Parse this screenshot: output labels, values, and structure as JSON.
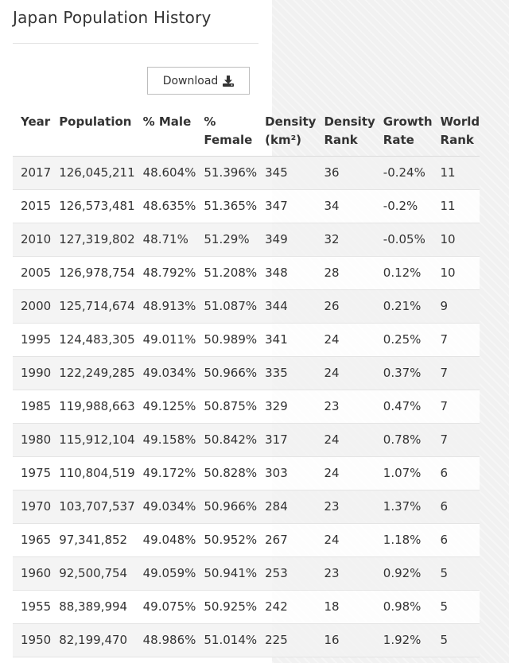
{
  "title": "Japan Population History",
  "download": {
    "label": "Download",
    "icon": "download-icon"
  },
  "columns": [
    {
      "line1": "Year",
      "line2": ""
    },
    {
      "line1": "Population",
      "line2": ""
    },
    {
      "line1": "% Male",
      "line2": ""
    },
    {
      "line1": "%",
      "line2": "Female"
    },
    {
      "line1": "Density",
      "line2": "(km²)"
    },
    {
      "line1": "Density",
      "line2": "Rank"
    },
    {
      "line1": "Growth",
      "line2": "Rate"
    },
    {
      "line1": "World",
      "line2": "Rank"
    }
  ],
  "rows": [
    [
      "2017",
      "126,045,211",
      "48.604%",
      "51.396%",
      "345",
      "36",
      "-0.24%",
      "11"
    ],
    [
      "2015",
      "126,573,481",
      "48.635%",
      "51.365%",
      "347",
      "34",
      "-0.2%",
      "11"
    ],
    [
      "2010",
      "127,319,802",
      "48.71%",
      "51.29%",
      "349",
      "32",
      "-0.05%",
      "10"
    ],
    [
      "2005",
      "126,978,754",
      "48.792%",
      "51.208%",
      "348",
      "28",
      "0.12%",
      "10"
    ],
    [
      "2000",
      "125,714,674",
      "48.913%",
      "51.087%",
      "344",
      "26",
      "0.21%",
      "9"
    ],
    [
      "1995",
      "124,483,305",
      "49.011%",
      "50.989%",
      "341",
      "24",
      "0.25%",
      "7"
    ],
    [
      "1990",
      "122,249,285",
      "49.034%",
      "50.966%",
      "335",
      "24",
      "0.37%",
      "7"
    ],
    [
      "1985",
      "119,988,663",
      "49.125%",
      "50.875%",
      "329",
      "23",
      "0.47%",
      "7"
    ],
    [
      "1980",
      "115,912,104",
      "49.158%",
      "50.842%",
      "317",
      "24",
      "0.78%",
      "7"
    ],
    [
      "1975",
      "110,804,519",
      "49.172%",
      "50.828%",
      "303",
      "24",
      "1.07%",
      "6"
    ],
    [
      "1970",
      "103,707,537",
      "49.034%",
      "50.966%",
      "284",
      "23",
      "1.37%",
      "6"
    ],
    [
      "1965",
      "97,341,852",
      "49.048%",
      "50.952%",
      "267",
      "24",
      "1.18%",
      "6"
    ],
    [
      "1960",
      "92,500,754",
      "49.059%",
      "50.941%",
      "253",
      "23",
      "0.92%",
      "5"
    ],
    [
      "1955",
      "88,389,994",
      "49.075%",
      "50.925%",
      "242",
      "18",
      "0.98%",
      "5"
    ],
    [
      "1950",
      "82,199,470",
      "48.986%",
      "51.014%",
      "225",
      "16",
      "1.92%",
      "5"
    ]
  ]
}
